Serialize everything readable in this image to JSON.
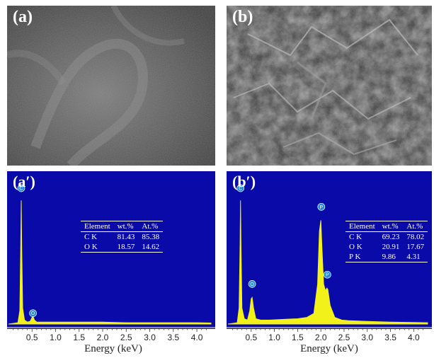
{
  "panels": {
    "a": {
      "label": "(a)"
    },
    "b": {
      "label": "(b)"
    },
    "a_prime": {
      "label": "(a′)"
    },
    "b_prime": {
      "label": "(b′)"
    }
  },
  "colors": {
    "eds_background": "#0a0aa8",
    "spectrum": "#f2f21a",
    "marker": "#1e88e5",
    "text": "#ffffff"
  },
  "tables": {
    "a_prime": {
      "headers": [
        "Element",
        "wt.%",
        "At.%"
      ],
      "rows": [
        [
          "C K",
          "81.43",
          "85.38"
        ],
        [
          "O K",
          "18.57",
          "14.62"
        ]
      ]
    },
    "b_prime": {
      "headers": [
        "Element",
        "wt.%",
        "At.%"
      ],
      "rows": [
        [
          "C K",
          "69.23",
          "78.02"
        ],
        [
          "O K",
          "20.91",
          "17.67"
        ],
        [
          "P K",
          "9.86",
          "4.31"
        ]
      ]
    }
  },
  "chart_data": [
    {
      "type": "line",
      "panel": "(a′)",
      "xlabel": "Energy (keV)",
      "ylabel": "",
      "xlim": [
        0.0,
        4.3
      ],
      "ylim": [
        0,
        100
      ],
      "xticks": [
        0.5,
        1.0,
        1.5,
        2.0,
        2.5,
        3.0,
        3.5,
        4.0
      ],
      "xtick_labels": [
        "0.5",
        "1.0",
        "1.5",
        "2.0",
        "2.5",
        "3.0",
        "3.5",
        "4.0"
      ],
      "peak_markers": [
        {
          "label": "C",
          "x": 0.27,
          "y": 100
        },
        {
          "label": "O",
          "x": 0.52,
          "y": 6
        }
      ],
      "series": [
        {
          "x": [
            0.0,
            0.1,
            0.2,
            0.24,
            0.26,
            0.27,
            0.28,
            0.3,
            0.34,
            0.4,
            0.46,
            0.5,
            0.52,
            0.55,
            0.6,
            0.7,
            0.9,
            1.2,
            1.6,
            2.0,
            2.5,
            3.0,
            3.5,
            4.0,
            4.3
          ],
          "y": [
            0,
            0.5,
            1,
            10,
            60,
            93,
            60,
            12,
            3,
            1.5,
            2,
            5,
            6,
            3,
            1.5,
            1.5,
            1.5,
            1.5,
            1.5,
            1.5,
            1,
            1,
            1,
            1,
            0.8
          ]
        }
      ]
    },
    {
      "type": "line",
      "panel": "(b′)",
      "xlabel": "Energy (keV)",
      "ylabel": "",
      "xlim": [
        0.0,
        4.3
      ],
      "ylim": [
        0,
        100
      ],
      "xticks": [
        0.5,
        1.0,
        1.5,
        2.0,
        2.5,
        3.0,
        3.5,
        4.0
      ],
      "xtick_labels": [
        "0.5",
        "1.0",
        "1.5",
        "2.0",
        "2.5",
        "3.0",
        "3.5",
        "4.0"
      ],
      "peak_markers": [
        {
          "label": "C",
          "x": 0.27,
          "y": 100
        },
        {
          "label": "O",
          "x": 0.52,
          "y": 28
        },
        {
          "label": "P",
          "x": 2.01,
          "y": 86
        },
        {
          "label": "P",
          "x": 2.14,
          "y": 35
        }
      ],
      "series": [
        {
          "x": [
            0.0,
            0.1,
            0.2,
            0.24,
            0.26,
            0.27,
            0.28,
            0.3,
            0.35,
            0.42,
            0.47,
            0.5,
            0.52,
            0.55,
            0.6,
            0.7,
            0.9,
            1.2,
            1.5,
            1.7,
            1.85,
            1.93,
            1.97,
            2.0,
            2.02,
            2.06,
            2.1,
            2.13,
            2.15,
            2.2,
            2.3,
            2.45,
            2.6,
            3.0,
            3.5,
            4.0,
            4.3
          ],
          "y": [
            0,
            0.5,
            1,
            12,
            60,
            93,
            60,
            12,
            4,
            3,
            10,
            19,
            20,
            12,
            4,
            3,
            3,
            3.5,
            4,
            5,
            8,
            30,
            70,
            78,
            60,
            30,
            25,
            27,
            26,
            14,
            5,
            3,
            2.5,
            2,
            1.5,
            1.2,
            1
          ]
        }
      ]
    }
  ]
}
